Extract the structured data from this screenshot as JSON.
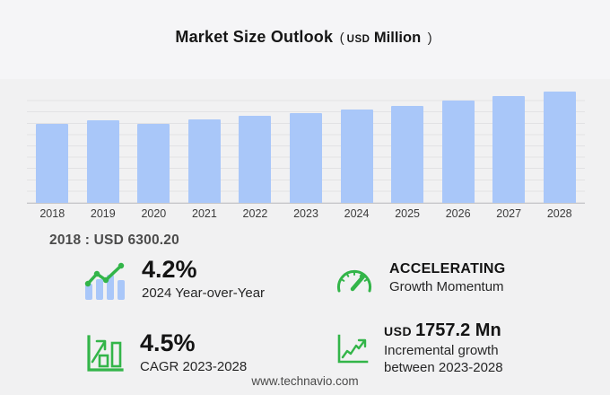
{
  "header": {
    "title": "Market Size Outlook",
    "unit_open": "(",
    "unit_currency": "USD",
    "unit_label": "Million",
    "unit_close": ")"
  },
  "chart_data": {
    "type": "bar",
    "title": "Market Size Outlook (USD Million)",
    "xlabel": "",
    "ylabel": "USD Million",
    "categories": [
      "2018",
      "2019",
      "2020",
      "2021",
      "2022",
      "2023",
      "2024",
      "2025",
      "2026",
      "2027",
      "2028"
    ],
    "values": [
      6300.2,
      6580,
      6310,
      6640,
      6940,
      7138.3,
      7438.1,
      7735,
      8150,
      8530,
      8895.5
    ],
    "ylim": [
      0,
      9000
    ],
    "gridline_step": 900,
    "grid": true,
    "legend": "none",
    "bar_color": "#a9c7f9"
  },
  "annotation": {
    "first_year_value": "2018 : USD  6300.20"
  },
  "stats": [
    {
      "icon": "trend-bars-icon",
      "value": "4.2%",
      "label": "2024 Year-over-Year"
    },
    {
      "icon": "gauge-icon",
      "value": "ACCELERATING",
      "label": "Growth Momentum"
    },
    {
      "icon": "growth-bars-icon",
      "value": "4.5%",
      "label": "CAGR 2023-2028"
    },
    {
      "icon": "line-chart-icon",
      "value_prefix": "USD",
      "value": "1757.2 Mn",
      "label": "Incremental growth",
      "label_line2": "between 2023-2028"
    }
  ],
  "footer": {
    "url": "www.technavio.com"
  },
  "colors": {
    "bar": "#a9c7f9",
    "accent_green": "#33b549",
    "page_bg": "#f5f5f7",
    "panel_bg": "#f1f1f2"
  }
}
